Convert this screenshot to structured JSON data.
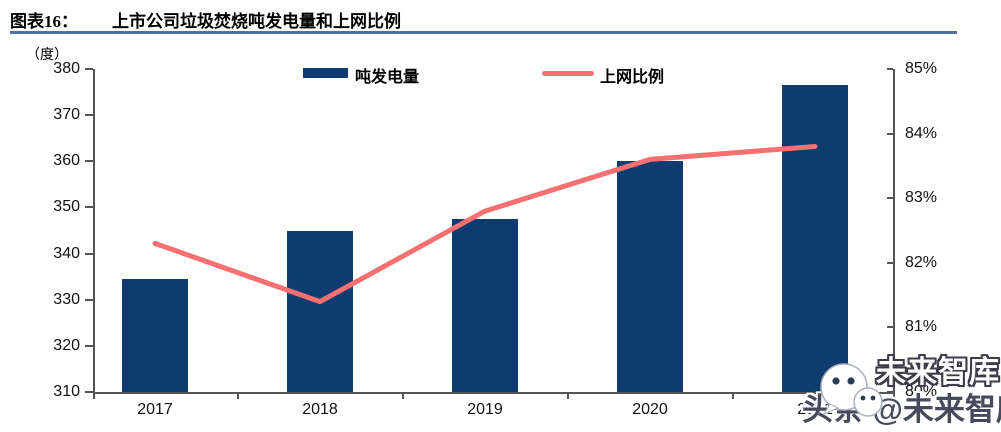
{
  "figure": {
    "label": "图表16：",
    "title": "上市公司垃圾焚烧吨发电量和上网比例",
    "unit_label": "（度）"
  },
  "legend": {
    "bar_label": "吨发电量",
    "line_label": "上网比例"
  },
  "colors": {
    "bar": "#0e3b70",
    "line": "#f8706f",
    "title_rule": "#51719f",
    "axis": "#555555"
  },
  "chart_data": {
    "type": "bar+line combo",
    "categories": [
      "2017",
      "2018",
      "2019",
      "2020",
      "2021"
    ],
    "series": [
      {
        "name": "吨发电量",
        "type": "bar",
        "axis": "left",
        "unit": "度",
        "values": [
          334.5,
          345,
          347.5,
          360,
          376.5
        ],
        "color": "#0e3b70"
      },
      {
        "name": "上网比例",
        "type": "line",
        "axis": "right",
        "unit": "%",
        "values": [
          82.3,
          81.4,
          82.8,
          83.6,
          83.8
        ],
        "color": "#f8706f"
      }
    ],
    "left_axis": {
      "title": "（度）",
      "min": 310,
      "max": 380,
      "step": 10,
      "tick_values": [
        310,
        320,
        330,
        340,
        350,
        360,
        370,
        380
      ],
      "tick_labels": [
        "310",
        "320",
        "330",
        "340",
        "350",
        "360",
        "370",
        "380"
      ]
    },
    "right_axis": {
      "min": 80,
      "max": 85,
      "step": 1,
      "tick_values": [
        80,
        81,
        82,
        83,
        84,
        85
      ],
      "tick_labels": [
        "80%",
        "81%",
        "82%",
        "83%",
        "84%",
        "85%"
      ]
    },
    "grid": false,
    "legend_position": "top-center"
  },
  "watermark": {
    "outline_text": "未来智库",
    "dark_text": "头条 @未来智库",
    "icon": "wechat-bubble-icon"
  }
}
